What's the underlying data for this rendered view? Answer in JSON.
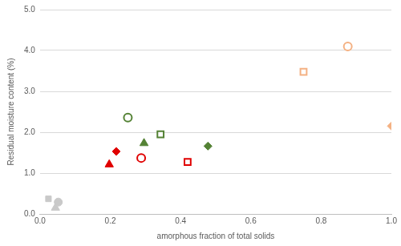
{
  "chart_data": {
    "type": "scatter",
    "xlabel": "amorphous fraction of total solids",
    "ylabel": "Residual moisture content (%)",
    "xlim": [
      0,
      1
    ],
    "ylim": [
      0,
      5
    ],
    "xticks": [
      {
        "value": 0,
        "label": "0.0"
      },
      0.2,
      0.4,
      0.6,
      0.8,
      {
        "value": 1,
        "label": "1.0"
      }
    ],
    "yticks": [
      {
        "value": 0,
        "label": "0.0"
      },
      {
        "value": 1,
        "label": "1.0"
      },
      {
        "value": 2,
        "label": "2.0"
      },
      {
        "value": 3,
        "label": "3.0"
      },
      {
        "value": 4,
        "label": "4.0"
      },
      {
        "value": 5,
        "label": "5.0"
      }
    ],
    "grid": "y",
    "series": [
      {
        "color": "#c9c9c9",
        "marker": "square",
        "x": [
          0.024
        ],
        "values": [
          0.37
        ]
      },
      {
        "color": "#c9c9c9",
        "marker": "triangle",
        "x": [
          0.044
        ],
        "values": [
          0.15
        ]
      },
      {
        "color": "#c9c9c9",
        "marker": "circle",
        "x": [
          0.052
        ],
        "values": [
          0.29
        ]
      },
      {
        "color": "#e00000",
        "marker": "triangle",
        "x": [
          0.197
        ],
        "values": [
          1.21
        ]
      },
      {
        "color": "#e00000",
        "marker": "diamond",
        "x": [
          0.217
        ],
        "values": [
          1.53
        ]
      },
      {
        "color": "#e00000",
        "marker": "open-circle",
        "x": [
          0.288
        ],
        "values": [
          1.37
        ]
      },
      {
        "color": "#e00000",
        "marker": "open-square",
        "x": [
          0.42
        ],
        "values": [
          1.27
        ]
      },
      {
        "color": "#548235",
        "marker": "open-circle",
        "x": [
          0.25
        ],
        "values": [
          2.36
        ]
      },
      {
        "color": "#548235",
        "marker": "triangle",
        "x": [
          0.296
        ],
        "values": [
          1.73
        ]
      },
      {
        "color": "#548235",
        "marker": "open-square",
        "x": [
          0.343
        ],
        "values": [
          1.95
        ]
      },
      {
        "color": "#548235",
        "marker": "diamond",
        "x": [
          0.478
        ],
        "values": [
          1.66
        ]
      },
      {
        "color": "#f4b183",
        "marker": "open-square",
        "x": [
          0.75
        ],
        "values": [
          3.48
        ]
      },
      {
        "color": "#f4b183",
        "marker": "open-circle",
        "x": [
          0.876
        ],
        "values": [
          4.1
        ]
      },
      {
        "color": "#f4b183",
        "marker": "diamond",
        "x": [
          1
        ],
        "values": [
          2.15
        ]
      }
    ]
  }
}
